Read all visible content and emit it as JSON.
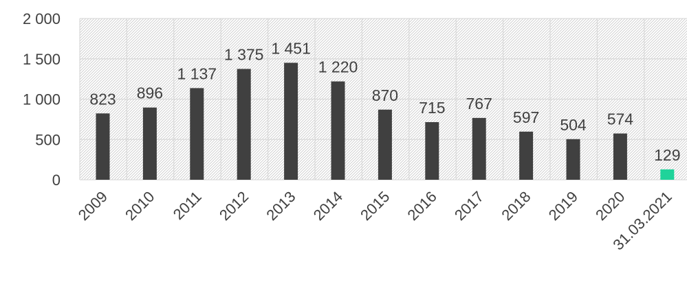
{
  "chart_data": {
    "type": "bar",
    "categories": [
      "2009",
      "2010",
      "2011",
      "2012",
      "2013",
      "2014",
      "2015",
      "2016",
      "2017",
      "2018",
      "2019",
      "2020",
      "31.03.2021"
    ],
    "values": [
      823,
      896,
      1137,
      1375,
      1451,
      1220,
      870,
      715,
      767,
      597,
      504,
      574,
      129
    ],
    "value_labels": [
      "823",
      "896",
      "1 137",
      "1 375",
      "1 451",
      "1 220",
      "870",
      "715",
      "767",
      "597",
      "504",
      "574",
      "129"
    ],
    "yticks": [
      0,
      500,
      1000,
      1500,
      2000
    ],
    "ytick_labels": [
      "0",
      "500",
      "1 000",
      "1 500",
      "2 000"
    ],
    "ylim": [
      0,
      2000
    ],
    "title": "",
    "xlabel": "",
    "ylabel": "",
    "grid": true,
    "legend": "none",
    "colors": {
      "bar": "#404040",
      "highlight_bar": "#1fd39a",
      "grid": "#d9d9d9",
      "hatch": "#c8c8c8",
      "text": "#404040"
    }
  }
}
